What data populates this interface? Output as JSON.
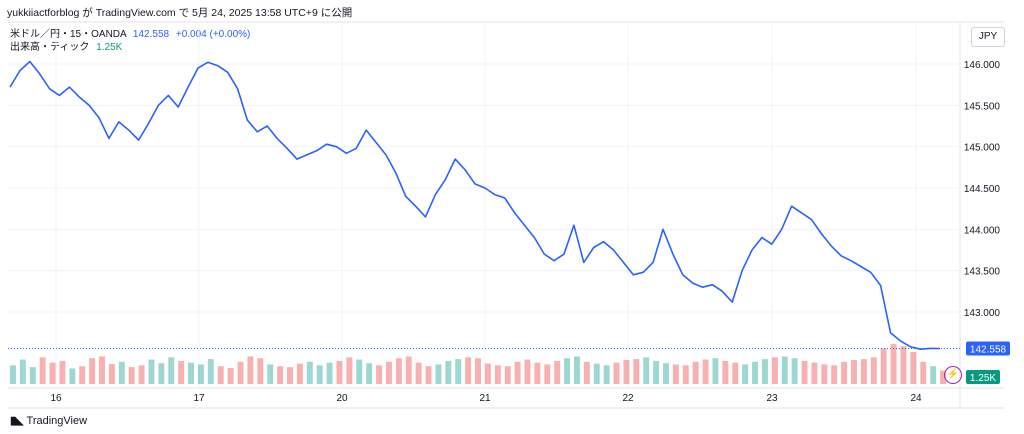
{
  "caption": "yukkiiactforblog が TradingView.com で 5月 24, 2025 13:58 UTC+9 に公開",
  "legend": {
    "symbol": "米ドル／円・15・OANDA",
    "price": "142.558",
    "change": "+0.004 (+0.00%)",
    "volume_label": "出来高・ティック",
    "volume_value": "1.25K"
  },
  "currency_button": "JPY",
  "brand": "TradingView",
  "brand_icon": "tradingview-logo",
  "colors": {
    "line": "#2962ff",
    "vol_up": "#26a69a",
    "vol_down": "#ef5350",
    "price_tag": "#2962ff",
    "vol_tag": "#089981"
  },
  "chart_data": {
    "type": "line",
    "x_ticks": [
      "16",
      "17",
      "20",
      "21",
      "22",
      "23",
      "24"
    ],
    "y_ticks": [
      "146.000",
      "145.500",
      "145.000",
      "144.500",
      "144.000",
      "143.500",
      "143.000"
    ],
    "ylim": [
      142.5,
      146.2
    ],
    "last_price": 142.558,
    "last_price_label": "142.558",
    "last_volume_label": "1.25K",
    "series": [
      {
        "values": [
          145.72,
          145.92,
          146.03,
          145.88,
          145.7,
          145.62,
          145.72,
          145.6,
          145.5,
          145.35,
          145.1,
          145.3,
          145.2,
          145.08,
          145.28,
          145.5,
          145.62,
          145.48,
          145.72,
          145.95,
          146.02,
          145.98,
          145.9,
          145.7,
          145.32,
          145.18,
          145.25,
          145.1,
          144.98,
          144.85,
          144.9,
          144.95,
          145.03,
          145.0,
          144.92,
          144.98,
          145.2,
          145.05,
          144.9,
          144.68,
          144.4,
          144.28,
          144.15,
          144.42,
          144.6,
          144.85,
          144.72,
          144.55,
          144.5,
          144.42,
          144.38,
          144.2,
          144.05,
          143.9,
          143.7,
          143.62,
          143.7,
          144.05,
          143.6,
          143.78,
          143.85,
          143.75,
          143.6,
          143.45,
          143.48,
          143.6,
          144.0,
          143.7,
          143.45,
          143.35,
          143.3,
          143.33,
          143.25,
          143.12,
          143.5,
          143.75,
          143.9,
          143.82,
          144.0,
          144.28,
          144.2,
          144.12,
          143.95,
          143.8,
          143.68,
          143.62,
          143.55,
          143.48,
          143.32,
          142.75,
          142.65,
          142.58,
          142.55,
          142.56,
          142.558
        ]
      }
    ],
    "volume": [
      42,
      55,
      38,
      60,
      48,
      52,
      35,
      40,
      58,
      62,
      45,
      50,
      38,
      42,
      55,
      47,
      60,
      52,
      48,
      44,
      56,
      40,
      36,
      50,
      62,
      58,
      44,
      40,
      38,
      46,
      50,
      42,
      48,
      52,
      60,
      55,
      47,
      42,
      50,
      58,
      62,
      48,
      40,
      44,
      52,
      56,
      60,
      58,
      46,
      42,
      40,
      50,
      55,
      48,
      44,
      52,
      58,
      62,
      50,
      46,
      42,
      48,
      54,
      56,
      60,
      52,
      47,
      44,
      42,
      50,
      55,
      58,
      52,
      48,
      44,
      50,
      56,
      60,
      62,
      58,
      52,
      48,
      44,
      42,
      50,
      54,
      56,
      60,
      80,
      90,
      85,
      72,
      50,
      40,
      30
    ]
  }
}
